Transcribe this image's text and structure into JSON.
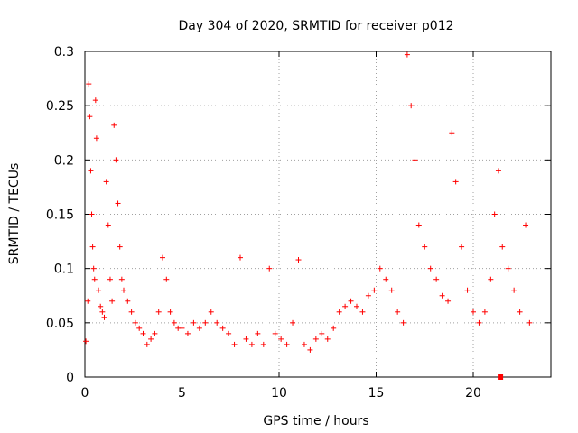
{
  "chart_data": {
    "type": "scatter",
    "title": "Day 304 of 2020, SRMTID for receiver p012",
    "xlabel": "GPS time / hours",
    "ylabel": "SRMTID / TECUs",
    "xlim": [
      0,
      24
    ],
    "ylim": [
      0,
      0.3
    ],
    "xticks": [
      0,
      5,
      10,
      15,
      20
    ],
    "yticks": [
      0,
      0.05,
      0.1,
      0.15,
      0.2,
      0.25,
      0.3
    ],
    "xtick_labels": [
      "0",
      "5",
      "10",
      "15",
      "20"
    ],
    "ytick_labels": [
      "0",
      "0.05",
      "0.1",
      "0.15",
      "0.2",
      "0.25",
      "0.3"
    ],
    "grid": true,
    "marker": "+",
    "color": "#ff0000",
    "series": [
      {
        "name": "SRMTID",
        "x": [
          0.05,
          0.15,
          0.2,
          0.25,
          0.3,
          0.35,
          0.4,
          0.45,
          0.5,
          0.55,
          0.6,
          0.7,
          0.8,
          0.9,
          1.0,
          1.1,
          1.2,
          1.3,
          1.4,
          1.5,
          1.6,
          1.7,
          1.8,
          1.9,
          2.0,
          2.2,
          2.4,
          2.6,
          2.8,
          3.0,
          3.2,
          3.4,
          3.6,
          3.8,
          4.0,
          4.2,
          4.4,
          4.6,
          4.8,
          5.0,
          5.3,
          5.6,
          5.9,
          6.2,
          6.5,
          6.8,
          7.1,
          7.4,
          7.7,
          8.0,
          8.3,
          8.6,
          8.9,
          9.2,
          9.5,
          9.8,
          10.1,
          10.4,
          10.7,
          11.0,
          11.3,
          11.6,
          11.9,
          12.2,
          12.5,
          12.8,
          13.1,
          13.4,
          13.7,
          14.0,
          14.3,
          14.6,
          14.9,
          15.2,
          15.5,
          15.8,
          16.1,
          16.4,
          16.6,
          16.8,
          17.0,
          17.2,
          17.5,
          17.8,
          18.1,
          18.4,
          18.7,
          18.9,
          19.1,
          19.4,
          19.7,
          20.0,
          20.3,
          20.6,
          20.9,
          21.1,
          21.3,
          21.5,
          21.8,
          22.1,
          22.4,
          22.7,
          22.9
        ],
        "y": [
          0.033,
          0.07,
          0.27,
          0.24,
          0.19,
          0.15,
          0.12,
          0.1,
          0.09,
          0.255,
          0.22,
          0.08,
          0.065,
          0.06,
          0.055,
          0.18,
          0.14,
          0.09,
          0.07,
          0.232,
          0.2,
          0.16,
          0.12,
          0.09,
          0.08,
          0.07,
          0.06,
          0.05,
          0.045,
          0.04,
          0.03,
          0.035,
          0.04,
          0.06,
          0.11,
          0.09,
          0.06,
          0.05,
          0.045,
          0.045,
          0.04,
          0.05,
          0.045,
          0.05,
          0.06,
          0.05,
          0.045,
          0.04,
          0.03,
          0.11,
          0.035,
          0.03,
          0.04,
          0.03,
          0.1,
          0.04,
          0.035,
          0.03,
          0.05,
          0.108,
          0.03,
          0.025,
          0.035,
          0.04,
          0.035,
          0.045,
          0.06,
          0.065,
          0.07,
          0.065,
          0.06,
          0.075,
          0.08,
          0.1,
          0.09,
          0.08,
          0.06,
          0.05,
          0.297,
          0.25,
          0.2,
          0.14,
          0.12,
          0.1,
          0.09,
          0.075,
          0.07,
          0.225,
          0.18,
          0.12,
          0.08,
          0.06,
          0.05,
          0.06,
          0.09,
          0.15,
          0.19,
          0.12,
          0.1,
          0.08,
          0.06,
          0.14,
          0.05
        ]
      }
    ],
    "annotation": {
      "x": 21.4,
      "y": 0.0,
      "marker": "square"
    }
  }
}
